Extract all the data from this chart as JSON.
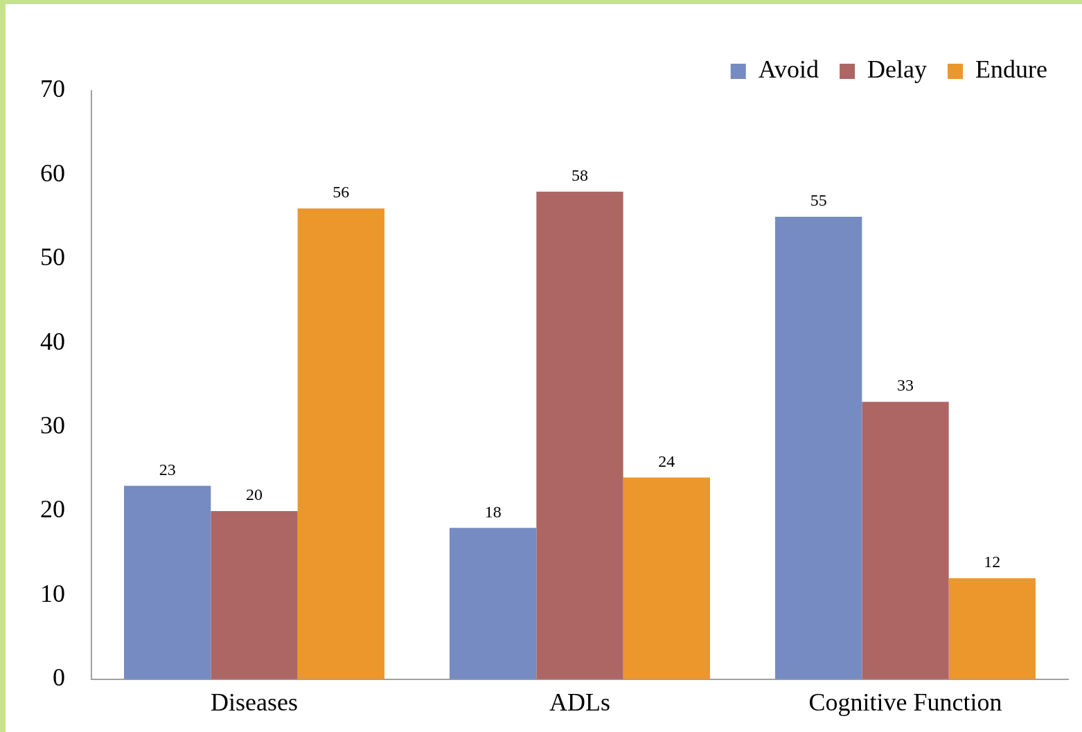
{
  "chart_data": {
    "type": "bar",
    "categories": [
      "Diseases",
      "ADLs",
      "Cognitive Function"
    ],
    "series": [
      {
        "name": "Avoid",
        "color": "#758bc2",
        "values": [
          23,
          18,
          55
        ]
      },
      {
        "name": "Delay",
        "color": "#ad6663",
        "values": [
          20,
          58,
          33
        ]
      },
      {
        "name": "Endure",
        "color": "#ec972c",
        "values": [
          56,
          24,
          12
        ]
      }
    ],
    "ylim": [
      0,
      70
    ],
    "yticks": [
      0,
      10,
      20,
      30,
      40,
      50,
      60,
      70
    ],
    "grid": false,
    "legend": "top right",
    "data_labels": true
  }
}
